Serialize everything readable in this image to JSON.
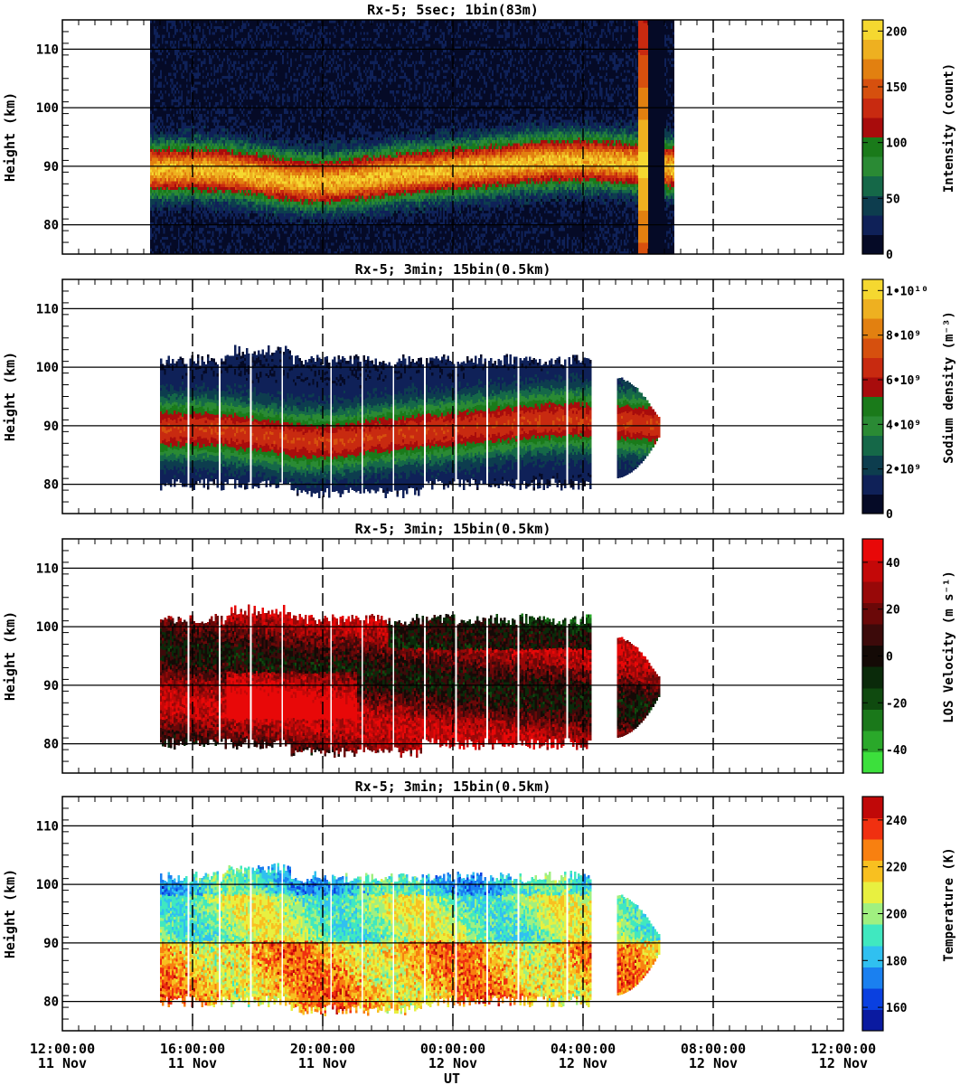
{
  "x_axis": {
    "label": "UT",
    "ticks": [
      {
        "hour": 0,
        "time": "12:00:00",
        "date": "11 Nov"
      },
      {
        "hour": 4,
        "time": "16:00:00",
        "date": "11 Nov"
      },
      {
        "hour": 8,
        "time": "20:00:00",
        "date": "11 Nov"
      },
      {
        "hour": 12,
        "time": "00:00:00",
        "date": "12 Nov"
      },
      {
        "hour": 16,
        "time": "04:00:00",
        "date": "12 Nov"
      },
      {
        "hour": 20,
        "time": "08:00:00",
        "date": "12 Nov"
      },
      {
        "hour": 24,
        "time": "12:00:00",
        "date": "12 Nov"
      }
    ]
  },
  "chart_data": [
    {
      "type": "heatmap",
      "title": "Rx-5;  5sec; 1bin(83m)",
      "ylabel": "Height (km)",
      "ylim": [
        75,
        115
      ],
      "yticks": [
        80,
        90,
        100,
        110
      ],
      "colorbar_label": "Intensity (count)",
      "colorbar_range": [
        0,
        210
      ],
      "colorbar_ticks": [
        {
          "v": 0,
          "label": "0"
        },
        {
          "v": 50,
          "label": "50"
        },
        {
          "v": 100,
          "label": "100"
        },
        {
          "v": 150,
          "label": "150"
        },
        {
          "v": 200,
          "label": "200"
        }
      ],
      "colors": [
        "#050a26",
        "#0f2158",
        "#0d3d4e",
        "#156848",
        "#2a8a34",
        "#1a7a1a",
        "#a80c0c",
        "#c82a10",
        "#d6500e",
        "#e28010",
        "#eeb020",
        "#f5d830"
      ],
      "data_x_range_hours": [
        2.7,
        18.8
      ],
      "layer_center_km": 88,
      "layer_peak_count": 170
    },
    {
      "type": "heatmap",
      "title": "Rx-5; 3min; 15bin(0.5km)",
      "ylabel": "Height (km)",
      "ylim": [
        75,
        115
      ],
      "yticks": [
        80,
        90,
        100,
        110
      ],
      "colorbar_label": "Sodium density (m⁻³)",
      "colorbar_range": [
        0,
        10500000000.0
      ],
      "colorbar_ticks": [
        {
          "v": 0,
          "label": "0"
        },
        {
          "v": 2000000000.0,
          "label": "2•10⁹"
        },
        {
          "v": 4000000000.0,
          "label": "4•10⁹"
        },
        {
          "v": 6000000000.0,
          "label": "6•10⁹"
        },
        {
          "v": 8000000000.0,
          "label": "8•10⁹"
        },
        {
          "v": 10000000000.0,
          "label": "1•10¹⁰"
        }
      ],
      "colors": [
        "#050a26",
        "#0f2158",
        "#0d3d4e",
        "#156848",
        "#2a8a34",
        "#1a7a1a",
        "#a80c0c",
        "#c82a10",
        "#d6500e",
        "#e28010",
        "#eeb020",
        "#f5d830"
      ],
      "data_x_range_hours": [
        3.0,
        18.3
      ],
      "layer_center_km": 88,
      "layer_peak_density": 6500000000.0
    },
    {
      "type": "heatmap",
      "title": "Rx-5; 3min; 15bin(0.5km)",
      "ylabel": "Height (km)",
      "ylim": [
        75,
        115
      ],
      "yticks": [
        80,
        90,
        100,
        110
      ],
      "colorbar_label": "LOS Velocity (m s⁻¹)",
      "colorbar_range": [
        -50,
        50
      ],
      "colorbar_ticks": [
        {
          "v": -40,
          "label": "-40"
        },
        {
          "v": -20,
          "label": "-20"
        },
        {
          "v": 0,
          "label": "0"
        },
        {
          "v": 20,
          "label": "20"
        },
        {
          "v": 40,
          "label": "40"
        }
      ],
      "colors": [
        "#3ce03c",
        "#2aa82a",
        "#1a781a",
        "#0f4a0f",
        "#0a2a0a",
        "#140a06",
        "#3c0a0a",
        "#6a0808",
        "#980808",
        "#c40808",
        "#e80808"
      ],
      "data_x_range_hours": [
        3.0,
        18.3
      ]
    },
    {
      "type": "heatmap",
      "title": "Rx-5; 3min; 15bin(0.5km)",
      "ylabel": "Height (km)",
      "ylim": [
        75,
        115
      ],
      "yticks": [
        80,
        90,
        100,
        110
      ],
      "colorbar_label": "Temperature (K)",
      "colorbar_range": [
        150,
        250
      ],
      "colorbar_ticks": [
        {
          "v": 160,
          "label": "160"
        },
        {
          "v": 180,
          "label": "180"
        },
        {
          "v": 200,
          "label": "200"
        },
        {
          "v": 220,
          "label": "220"
        },
        {
          "v": 240,
          "label": "240"
        }
      ],
      "colors": [
        "#0a1aa0",
        "#0a40e0",
        "#1a80f0",
        "#30c0f0",
        "#40e8c0",
        "#a0f080",
        "#e8f040",
        "#f8c020",
        "#f88010",
        "#f03010",
        "#c00808"
      ],
      "data_x_range_hours": [
        3.0,
        18.3
      ]
    }
  ]
}
